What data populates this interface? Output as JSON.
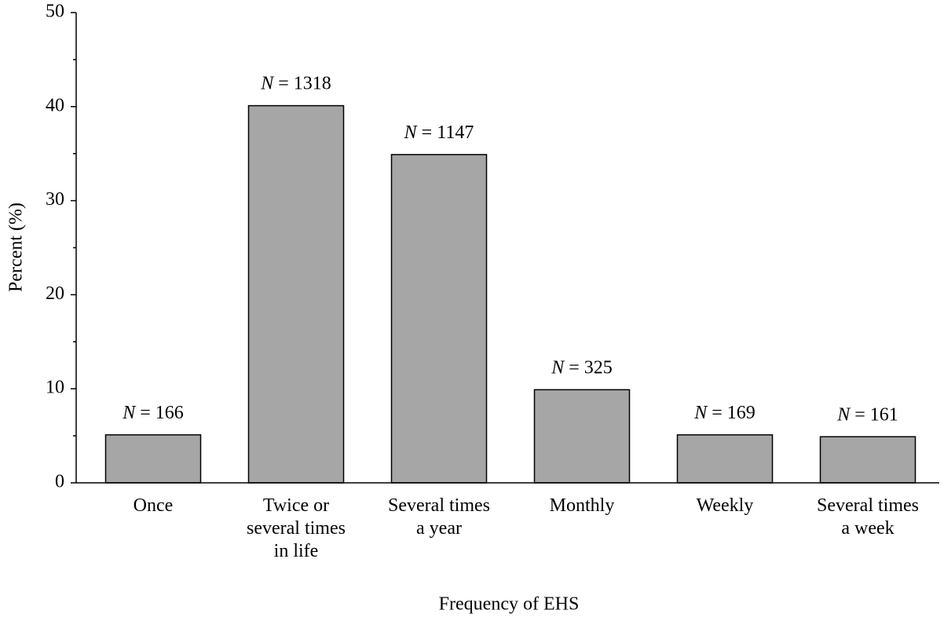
{
  "chart_data": {
    "type": "bar",
    "x_label": "Frequency of EHS",
    "y_label": "Percent (%)",
    "categories": [
      "Once",
      "Twice or\nseveral times\nin life",
      "Several times\na year",
      "Monthly",
      "Weekly",
      "Several times\na week"
    ],
    "values": [
      5.1,
      40.1,
      34.9,
      9.9,
      5.1,
      4.9
    ],
    "annotations": [
      "N = 166",
      "N = 1318",
      "N = 1147",
      "N = 325",
      "N = 169",
      "N = 161"
    ],
    "color": "#a6a6a6",
    "ylim": [
      0,
      50
    ],
    "yticks": [
      0,
      10,
      20,
      30,
      40,
      50
    ],
    "yticks_minor": [
      5,
      15,
      25,
      35,
      45
    ],
    "grid": false
  }
}
